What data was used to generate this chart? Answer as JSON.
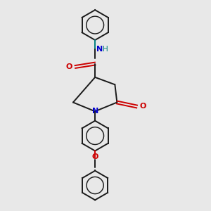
{
  "bg_color": "#e8e8e8",
  "bond_color": "#1a1a1a",
  "N_color": "#0000cc",
  "O_color": "#cc0000",
  "NH_color": "#008080",
  "figsize": [
    3.0,
    3.0
  ],
  "dpi": 100,
  "xlim": [
    0,
    10
  ],
  "ylim": [
    0,
    10
  ]
}
